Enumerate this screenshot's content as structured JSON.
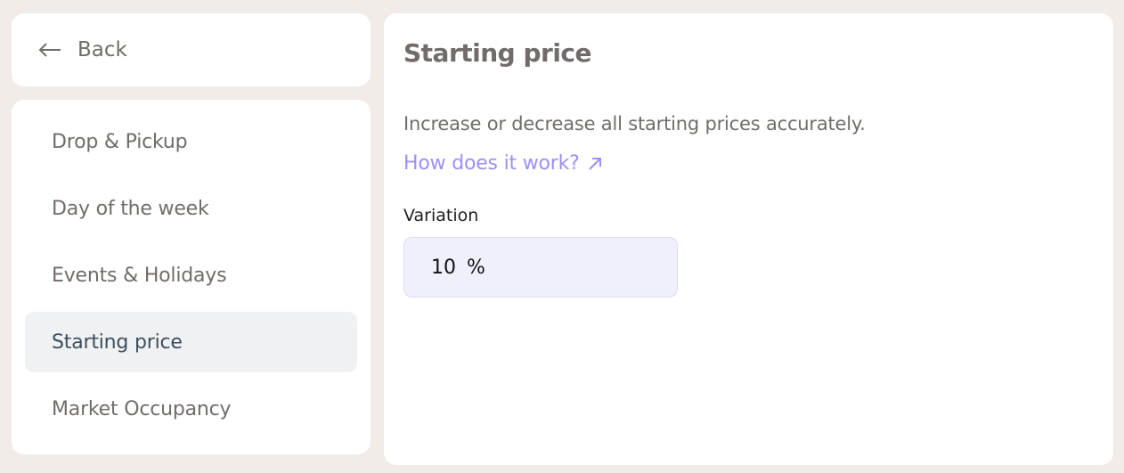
{
  "back": {
    "label": "Back",
    "icon": "arrow-left-icon"
  },
  "nav": {
    "items": [
      {
        "label": "Drop & Pickup",
        "active": false
      },
      {
        "label": "Day of the week",
        "active": false
      },
      {
        "label": "Events & Holidays",
        "active": false
      },
      {
        "label": "Starting price",
        "active": true
      },
      {
        "label": "Market Occupancy",
        "active": false
      }
    ]
  },
  "main": {
    "title": "Starting price",
    "description": "Increase or decrease all starting prices accurately.",
    "link": "How does it work?",
    "variation_label": "Variation",
    "variation_value": "10",
    "variation_unit": "%"
  },
  "colors": {
    "background": "#f1ece8",
    "link": "#9b91f5",
    "active_bg": "#f0f1f3",
    "input_bg": "#f0f0fc"
  }
}
